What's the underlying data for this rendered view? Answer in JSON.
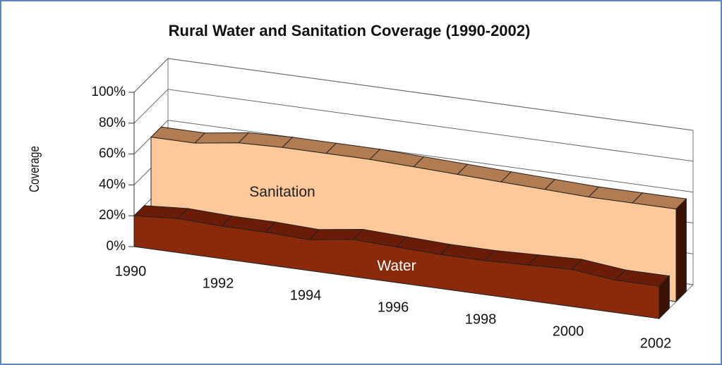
{
  "chart_data": {
    "type": "area3d",
    "title": "Rural Water and Sanitation Coverage (1990-2002)",
    "y_label": "Coverage",
    "categories": [
      "1990",
      null,
      "1992",
      null,
      "1994",
      null,
      "1996",
      null,
      "1998",
      null,
      "2000",
      null,
      "2002"
    ],
    "series": [
      {
        "name": "Water",
        "color": "#8b2a0a",
        "top_color": "#6a1c06",
        "values": [
          20,
          22,
          21,
          21,
          20,
          24,
          23,
          22,
          22,
          23,
          24,
          21,
          21
        ]
      },
      {
        "name": "Sanitation",
        "color": "#fdc99b",
        "top_color": "#b27c52",
        "values": [
          60,
          60,
          64,
          65,
          65,
          65,
          64,
          63,
          62,
          61,
          60,
          60,
          60
        ]
      }
    ],
    "ylim": [
      0,
      100
    ],
    "yticks": [
      {
        "value": 0,
        "label": "0%"
      },
      {
        "value": 20,
        "label": "20%"
      },
      {
        "value": 40,
        "label": "40%"
      },
      {
        "value": 60,
        "label": "60%"
      },
      {
        "value": 80,
        "label": "80%"
      },
      {
        "value": 100,
        "label": "100%"
      }
    ],
    "grid": true
  }
}
